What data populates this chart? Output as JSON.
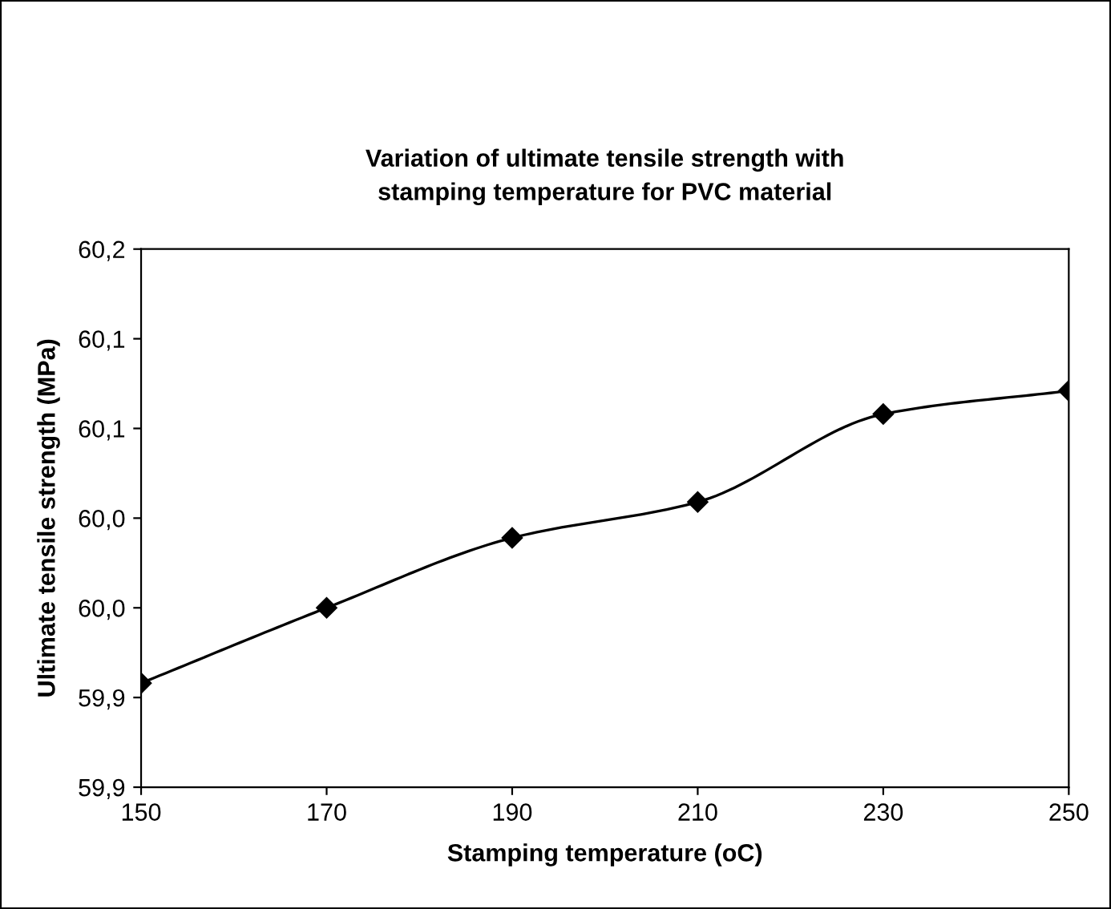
{
  "chart_data": {
    "type": "line",
    "title": "Variation of ultimate tensile strength with\nstamping temperature for PVC material",
    "xlabel": "Stamping temperature (oC)",
    "ylabel": "Ultimate tensile strength (MPa)",
    "x": [
      150,
      170,
      190,
      210,
      230,
      250
    ],
    "series": [
      {
        "color": "#000000",
        "values": [
          59.908,
          59.95,
          59.989,
          60.009,
          60.058,
          60.071
        ]
      }
    ],
    "xlim": [
      150,
      250
    ],
    "xticks": [
      150,
      170,
      190,
      210,
      230,
      250
    ],
    "ylim": [
      59.85,
      60.15
    ],
    "yticks": [
      {
        "value": 59.85,
        "label": "59,9"
      },
      {
        "value": 59.9,
        "label": "59,9"
      },
      {
        "value": 59.95,
        "label": "60,0"
      },
      {
        "value": 60.0,
        "label": "60,0"
      },
      {
        "value": 60.05,
        "label": "60,1"
      },
      {
        "value": 60.1,
        "label": "60,1"
      },
      {
        "value": 60.15,
        "label": "60,2"
      }
    ],
    "marker": "diamond",
    "line_style": "solid",
    "grid": false,
    "legend": false
  }
}
